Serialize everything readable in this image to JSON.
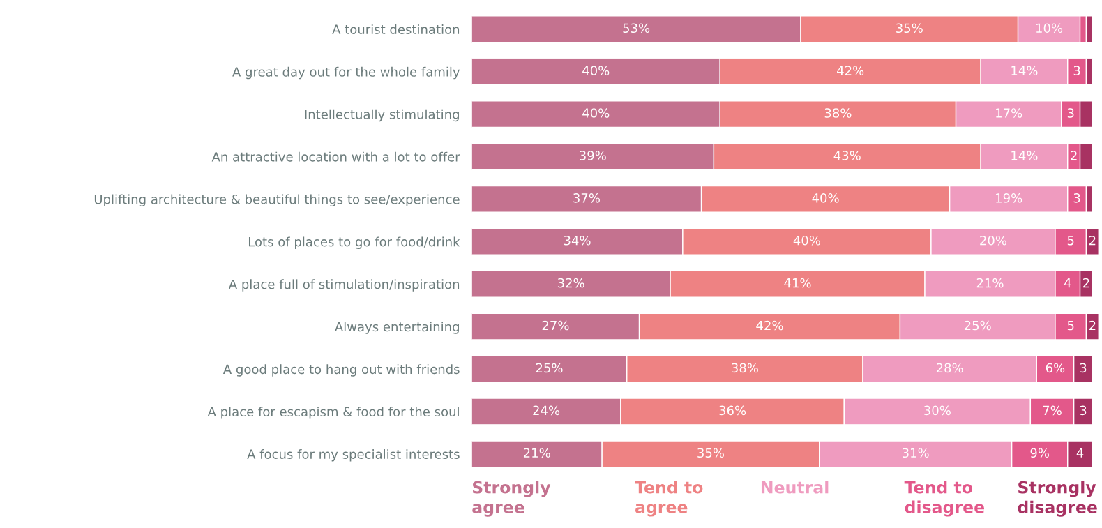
{
  "chart_data": {
    "type": "bar",
    "orientation": "horizontal",
    "stacked": true,
    "categories": [
      "A tourist destination",
      "A great day out for the whole family",
      "Intellectually stimulating",
      "An attractive location with a lot to offer",
      "Uplifting architecture & beautiful things to see/experience",
      "Lots of places to go for food/drink",
      "A place full of stimulation/inspiration",
      "Always entertaining",
      "A good place to hang out with friends",
      "A place for escapism & food for the soul",
      "A focus for my specialist interests"
    ],
    "series": [
      {
        "name": "Strongly\nagree",
        "color": "#c4728f",
        "values": [
          53,
          40,
          40,
          39,
          37,
          34,
          32,
          27,
          25,
          24,
          21
        ],
        "value_labels": [
          "53%",
          "40%",
          "40%",
          "39%",
          "37%",
          "34%",
          "32%",
          "27%",
          "25%",
          "24%",
          "21%"
        ]
      },
      {
        "name": "Tend to\nagree",
        "color": "#ee8283",
        "values": [
          35,
          42,
          38,
          43,
          40,
          40,
          41,
          42,
          38,
          36,
          35
        ],
        "value_labels": [
          "35%",
          "42%",
          "38%",
          "43%",
          "40%",
          "40%",
          "41%",
          "42%",
          "38%",
          "36%",
          "35%"
        ]
      },
      {
        "name": "Neutral",
        "color": "#ef9bbf",
        "values": [
          10,
          14,
          17,
          14,
          19,
          20,
          21,
          25,
          28,
          30,
          31
        ],
        "value_labels": [
          "10%",
          "14%",
          "17%",
          "14%",
          "19%",
          "20%",
          "21%",
          "25%",
          "28%",
          "30%",
          "31%"
        ]
      },
      {
        "name": "Tend to\ndisagree",
        "color": "#e3588a",
        "values": [
          1,
          3,
          3,
          2,
          3,
          5,
          4,
          5,
          6,
          7,
          9
        ],
        "value_labels": [
          null,
          "3",
          "3",
          "2",
          "3",
          "5",
          "4",
          "5",
          "6%",
          "7%",
          "9%"
        ]
      },
      {
        "name": "Strongly\ndisagree",
        "color": "#a83262",
        "values": [
          1,
          1,
          2,
          2,
          1,
          2,
          2,
          2,
          3,
          3,
          4
        ],
        "value_labels": [
          null,
          null,
          null,
          null,
          null,
          "2",
          "2",
          "2",
          "3",
          "3",
          "4"
        ]
      }
    ],
    "tick_labels": "y",
    "legend": "bottom",
    "grid": false
  }
}
